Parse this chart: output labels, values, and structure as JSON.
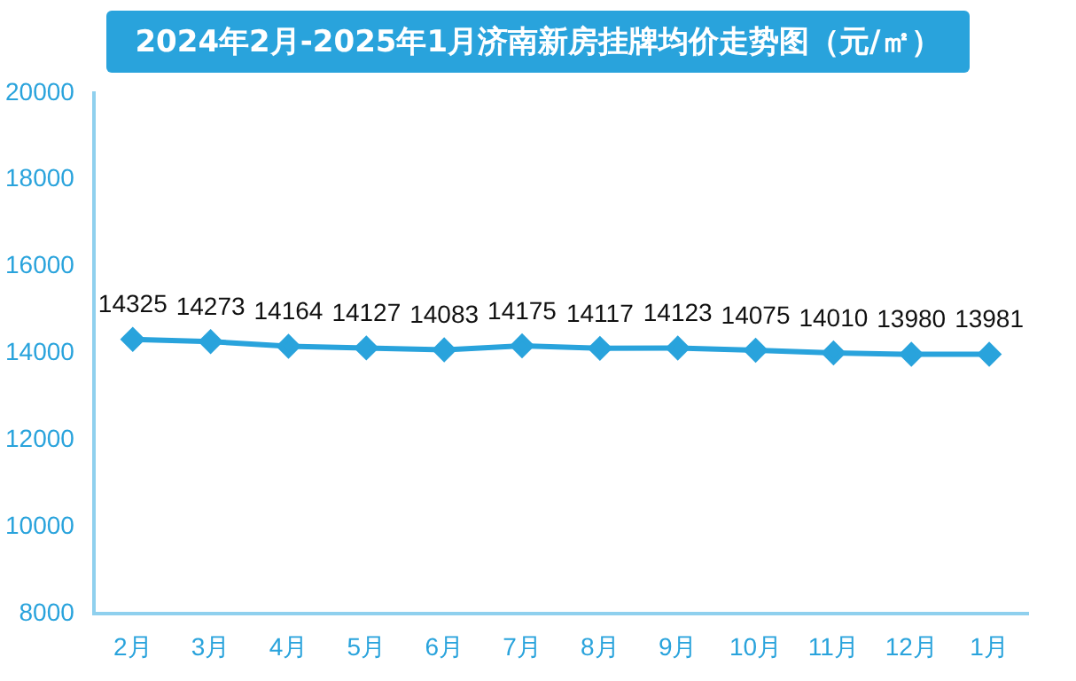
{
  "chart_data": {
    "type": "line",
    "title": "2024年2月-2025年1月济南新房挂牌均价走势图（元/㎡）",
    "categories": [
      "2月",
      "3月",
      "4月",
      "5月",
      "6月",
      "7月",
      "8月",
      "9月",
      "10月",
      "11月",
      "12月",
      "1月"
    ],
    "series": [
      {
        "color": "#29a3dc",
        "values": [
          14325,
          14273,
          14164,
          14127,
          14083,
          14175,
          14117,
          14123,
          14075,
          14010,
          13980,
          13981
        ]
      }
    ],
    "ylim": [
      8000,
      20000
    ],
    "yticks": [
      8000,
      10000,
      12000,
      14000,
      16000,
      18000,
      20000
    ],
    "grid": false,
    "legend": false,
    "marker": "diamond",
    "line_style": "solid",
    "data_labels": true
  }
}
